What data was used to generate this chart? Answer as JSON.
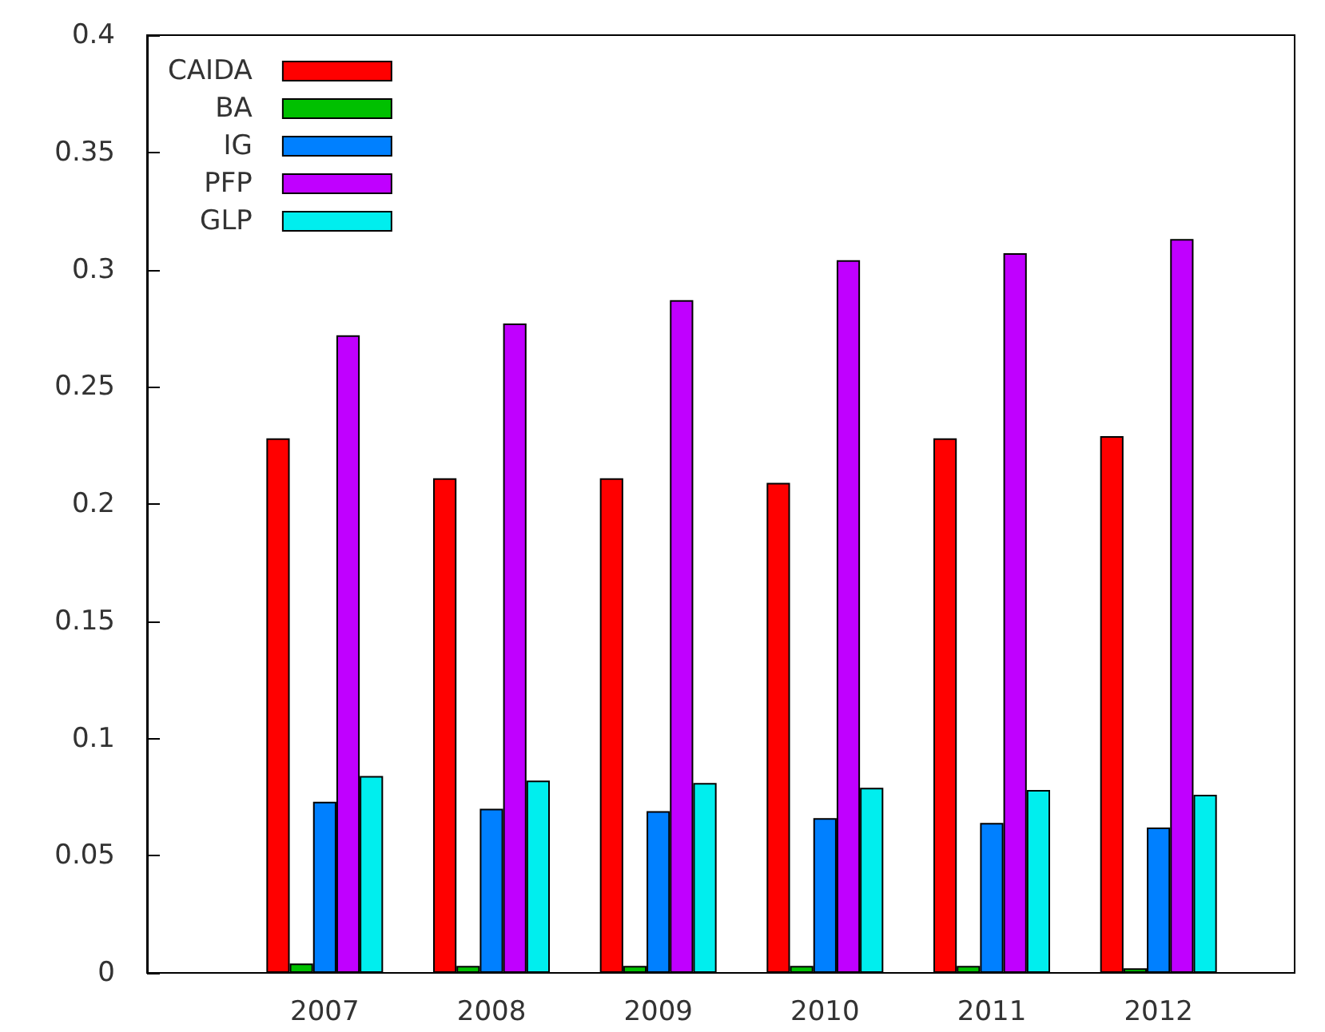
{
  "chart_data": {
    "type": "bar",
    "categories": [
      "2007",
      "2008",
      "2009",
      "2010",
      "2011",
      "2012"
    ],
    "series": [
      {
        "name": "CAIDA",
        "color": "#ff0000",
        "values": [
          0.228,
          0.211,
          0.211,
          0.209,
          0.228,
          0.229
        ]
      },
      {
        "name": "BA",
        "color": "#00c000",
        "values": [
          0.004,
          0.003,
          0.003,
          0.003,
          0.003,
          0.002
        ]
      },
      {
        "name": "IG",
        "color": "#0080ff",
        "values": [
          0.073,
          0.07,
          0.069,
          0.066,
          0.064,
          0.062
        ]
      },
      {
        "name": "PFP",
        "color": "#c000ff",
        "values": [
          0.272,
          0.277,
          0.287,
          0.304,
          0.307,
          0.313
        ]
      },
      {
        "name": "GLP",
        "color": "#00eeee",
        "values": [
          0.084,
          0.082,
          0.081,
          0.079,
          0.078,
          0.076
        ]
      }
    ],
    "ylim": [
      0,
      0.4
    ],
    "yticks": [
      0,
      0.05,
      0.1,
      0.15,
      0.2,
      0.25,
      0.3,
      0.35,
      0.4
    ],
    "legend": "top left"
  }
}
